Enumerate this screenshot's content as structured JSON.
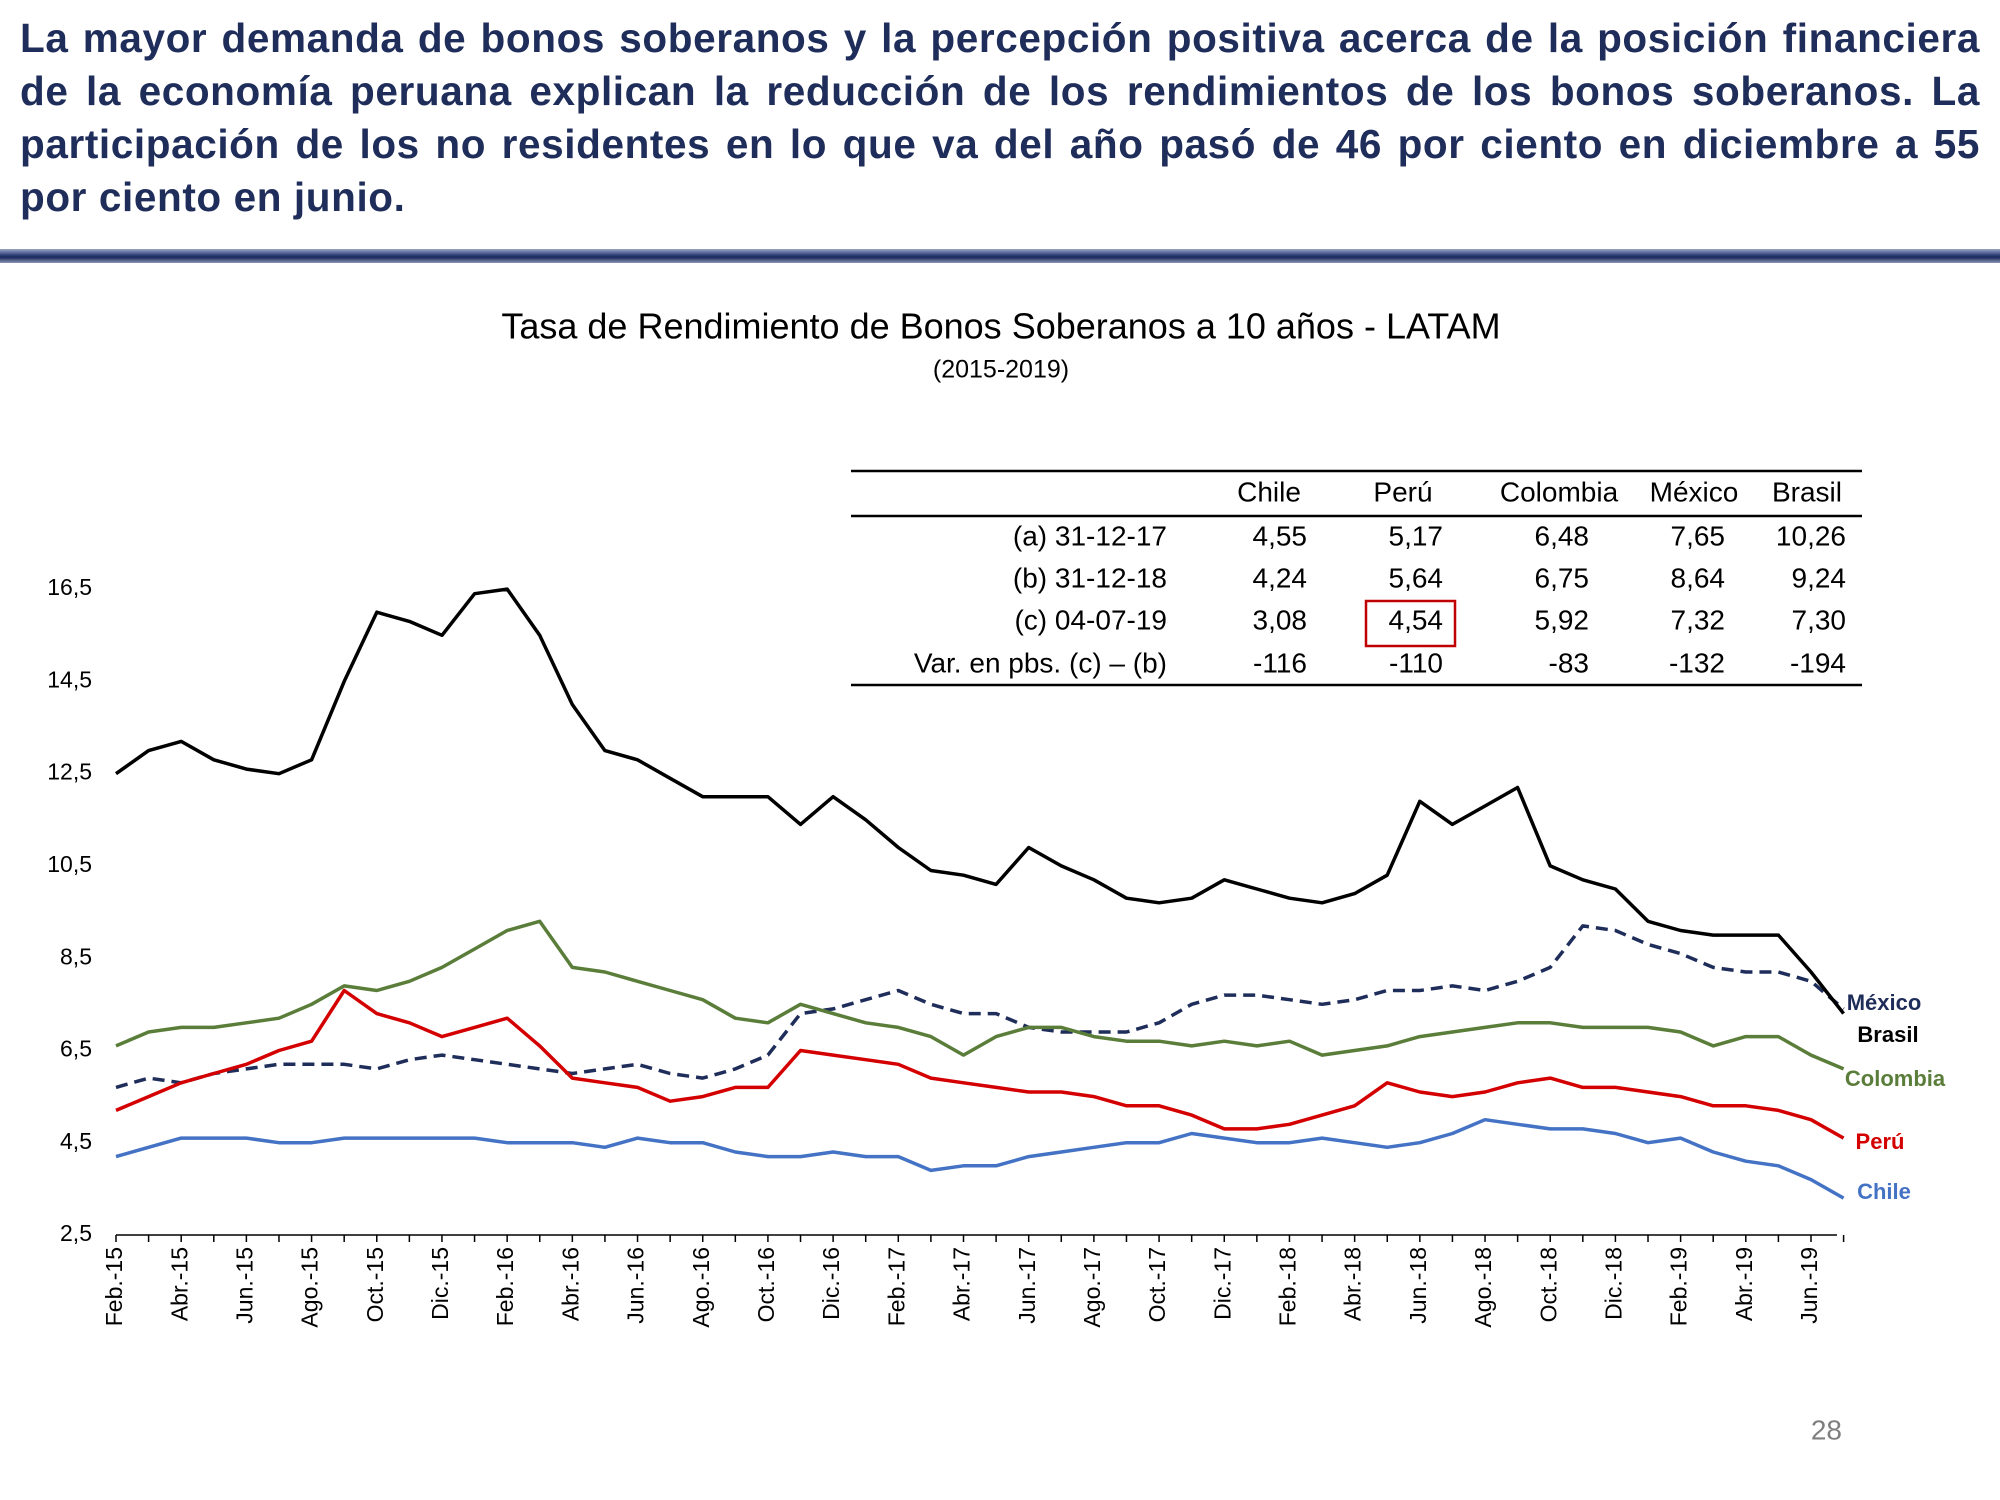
{
  "header": {
    "text": "La mayor demanda de bonos soberanos y la percepción positiva acerca de la posición financiera de la economía peruana explican la reducción de los rendimientos de los bonos soberanos. La participación de los no residentes en lo que va del año pasó de 46 por ciento en diciembre a 55 por ciento en junio."
  },
  "chart_data": {
    "type": "line",
    "title": "Tasa de Rendimiento de Bonos Soberanos a 10 años - LATAM",
    "subtitle": "(2015-2019)",
    "categories": [
      "Feb.-15",
      null,
      "Abr.-15",
      null,
      "Jun.-15",
      null,
      "Ago.-15",
      null,
      "Oct.-15",
      null,
      "Dic.-15",
      null,
      "Feb.-16",
      null,
      "Abr.-16",
      null,
      "Jun.-16",
      null,
      "Ago.-16",
      null,
      "Oct.-16",
      null,
      "Dic.-16",
      null,
      "Feb.-17",
      null,
      "Abr.-17",
      null,
      "Jun.-17",
      null,
      "Ago.-17",
      null,
      "Oct.-17",
      null,
      "Dic.-17",
      null,
      "Feb.-18",
      null,
      "Abr.-18",
      null,
      "Jun.-18",
      null,
      "Ago.-18",
      null,
      "Oct.-18",
      null,
      "Dic.-18",
      null,
      "Feb.-19",
      null,
      "Abr.-19",
      null,
      "Jun.-19",
      null
    ],
    "ylim": [
      2.5,
      17.5
    ],
    "yticks": [
      {
        "value": 2.5,
        "label": "2,5"
      },
      {
        "value": 4.5,
        "label": "4,5"
      },
      {
        "value": 6.5,
        "label": "6,5"
      },
      {
        "value": 8.5,
        "label": "8,5"
      },
      {
        "value": 10.5,
        "label": "10,5"
      },
      {
        "value": 12.5,
        "label": "12,5"
      },
      {
        "value": 14.5,
        "label": "14,5"
      },
      {
        "value": 16.5,
        "label": "16,5"
      }
    ],
    "grid": false,
    "series": [
      {
        "name": "México",
        "color": "#1f2d5a",
        "dashed": true,
        "values": [
          5.7,
          5.9,
          5.8,
          6.0,
          6.1,
          6.2,
          6.2,
          6.2,
          6.1,
          6.3,
          6.4,
          6.3,
          6.2,
          6.1,
          6.0,
          6.1,
          6.2,
          6.0,
          5.9,
          6.1,
          6.4,
          7.3,
          7.4,
          7.6,
          7.8,
          7.5,
          7.3,
          7.3,
          7.0,
          6.9,
          6.9,
          6.9,
          7.1,
          7.5,
          7.7,
          7.7,
          7.6,
          7.5,
          7.6,
          7.8,
          7.8,
          7.9,
          7.8,
          8.0,
          8.3,
          9.2,
          9.1,
          8.8,
          8.6,
          8.3,
          8.2,
          8.2,
          8.0,
          7.4
        ]
      },
      {
        "name": "Brasil",
        "color": "#000000",
        "values": [
          12.5,
          13.0,
          13.2,
          12.8,
          12.6,
          12.5,
          12.8,
          14.5,
          16.0,
          15.8,
          15.5,
          16.4,
          16.5,
          15.5,
          14.0,
          13.0,
          12.8,
          12.4,
          12.0,
          12.0,
          12.0,
          11.4,
          12.0,
          11.5,
          10.9,
          10.4,
          10.3,
          10.1,
          10.9,
          10.5,
          10.2,
          9.8,
          9.7,
          9.8,
          10.2,
          10.0,
          9.8,
          9.7,
          9.9,
          10.3,
          11.9,
          11.4,
          11.8,
          12.2,
          10.5,
          10.2,
          10.0,
          9.3,
          9.1,
          9.0,
          9.0,
          9.0,
          8.2,
          7.3
        ]
      },
      {
        "name": "Colombia",
        "color": "#5a7d3a",
        "values": [
          6.6,
          6.9,
          7.0,
          7.0,
          7.1,
          7.2,
          7.5,
          7.9,
          7.8,
          8.0,
          8.3,
          8.7,
          9.1,
          9.3,
          8.3,
          8.2,
          8.0,
          7.8,
          7.6,
          7.2,
          7.1,
          7.5,
          7.3,
          7.1,
          7.0,
          6.8,
          6.4,
          6.8,
          7.0,
          7.0,
          6.8,
          6.7,
          6.7,
          6.6,
          6.7,
          6.6,
          6.7,
          6.4,
          6.5,
          6.6,
          6.8,
          6.9,
          7.0,
          7.1,
          7.1,
          7.0,
          7.0,
          7.0,
          6.9,
          6.6,
          6.8,
          6.8,
          6.4,
          6.1
        ]
      },
      {
        "name": "Perú",
        "color": "#d40000",
        "values": [
          5.2,
          5.5,
          5.8,
          6.0,
          6.2,
          6.5,
          6.7,
          7.8,
          7.3,
          7.1,
          6.8,
          7.0,
          7.2,
          6.6,
          5.9,
          5.8,
          5.7,
          5.4,
          5.5,
          5.7,
          5.7,
          6.5,
          6.4,
          6.3,
          6.2,
          5.9,
          5.8,
          5.7,
          5.6,
          5.6,
          5.5,
          5.3,
          5.3,
          5.1,
          4.8,
          4.8,
          4.9,
          5.1,
          5.3,
          5.8,
          5.6,
          5.5,
          5.6,
          5.8,
          5.9,
          5.7,
          5.7,
          5.6,
          5.5,
          5.3,
          5.3,
          5.2,
          5.0,
          4.6
        ]
      },
      {
        "name": "Chile",
        "color": "#4472c4",
        "values": [
          4.2,
          4.4,
          4.6,
          4.6,
          4.6,
          4.5,
          4.5,
          4.6,
          4.6,
          4.6,
          4.6,
          4.6,
          4.5,
          4.5,
          4.5,
          4.4,
          4.6,
          4.5,
          4.5,
          4.3,
          4.2,
          4.2,
          4.3,
          4.2,
          4.2,
          3.9,
          4.0,
          4.0,
          4.2,
          4.3,
          4.4,
          4.5,
          4.5,
          4.7,
          4.6,
          4.5,
          4.5,
          4.6,
          4.5,
          4.4,
          4.5,
          4.7,
          5.0,
          4.9,
          4.8,
          4.8,
          4.7,
          4.5,
          4.6,
          4.3,
          4.1,
          4.0,
          3.7,
          3.3
        ]
      }
    ]
  },
  "table": {
    "columns": [
      "Chile",
      "Perú",
      "Colombia",
      "México",
      "Brasil"
    ],
    "rows": [
      [
        "(a) 31-12-17",
        "4,55",
        "5,17",
        "6,48",
        "7,65",
        "10,26"
      ],
      [
        "(b) 31-12-18",
        "4,24",
        "5,64",
        "6,75",
        "8,64",
        "9,24"
      ],
      [
        "(c) 04-07-19",
        "3,08",
        "4,54",
        "5,92",
        "7,32",
        "7,30"
      ],
      [
        "Var. en pbs. (c) – (b)",
        "-116",
        "-110",
        "-83",
        "-132",
        "-194"
      ]
    ]
  },
  "page_number": "28"
}
